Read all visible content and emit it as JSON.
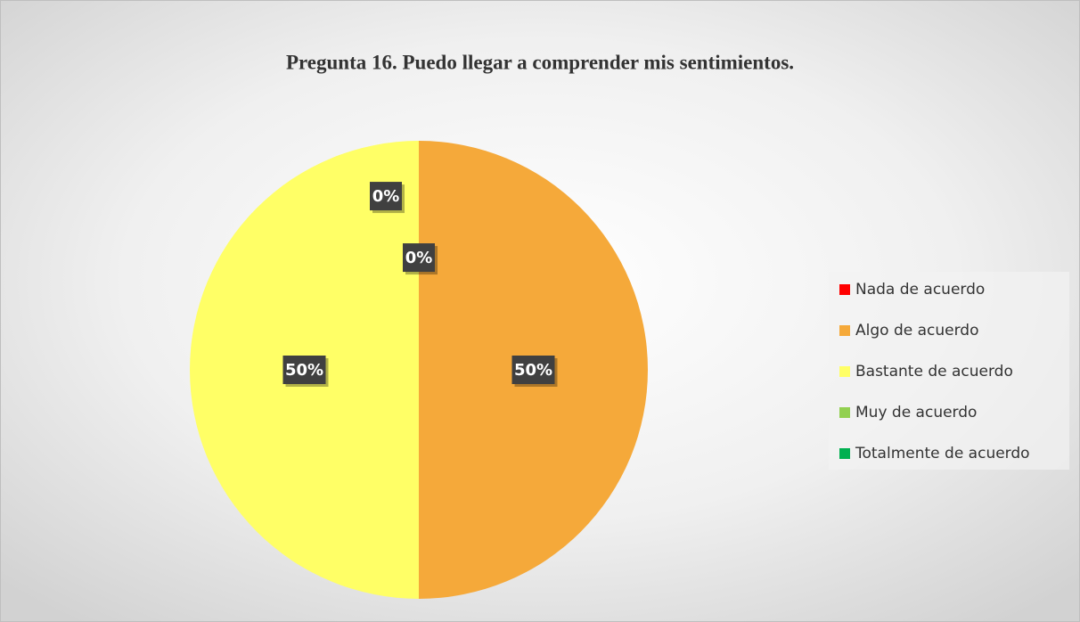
{
  "chart_data": {
    "type": "pie",
    "title": "Pregunta 16. Puedo llegar a comprender mis sentimientos.",
    "categories": [
      "Nada de acuerdo",
      "Algo de acuerdo",
      "Bastante de acuerdo",
      "Muy de acuerdo",
      "Totalmente de acuerdo"
    ],
    "values": [
      0,
      50,
      50,
      0,
      0
    ],
    "value_labels": [
      "0%",
      "50%",
      "50%",
      "0%",
      null
    ],
    "colors": [
      "#ff0000",
      "#f5a93a",
      "#ffff66",
      "#92d050",
      "#00b050"
    ],
    "legend": "right"
  }
}
